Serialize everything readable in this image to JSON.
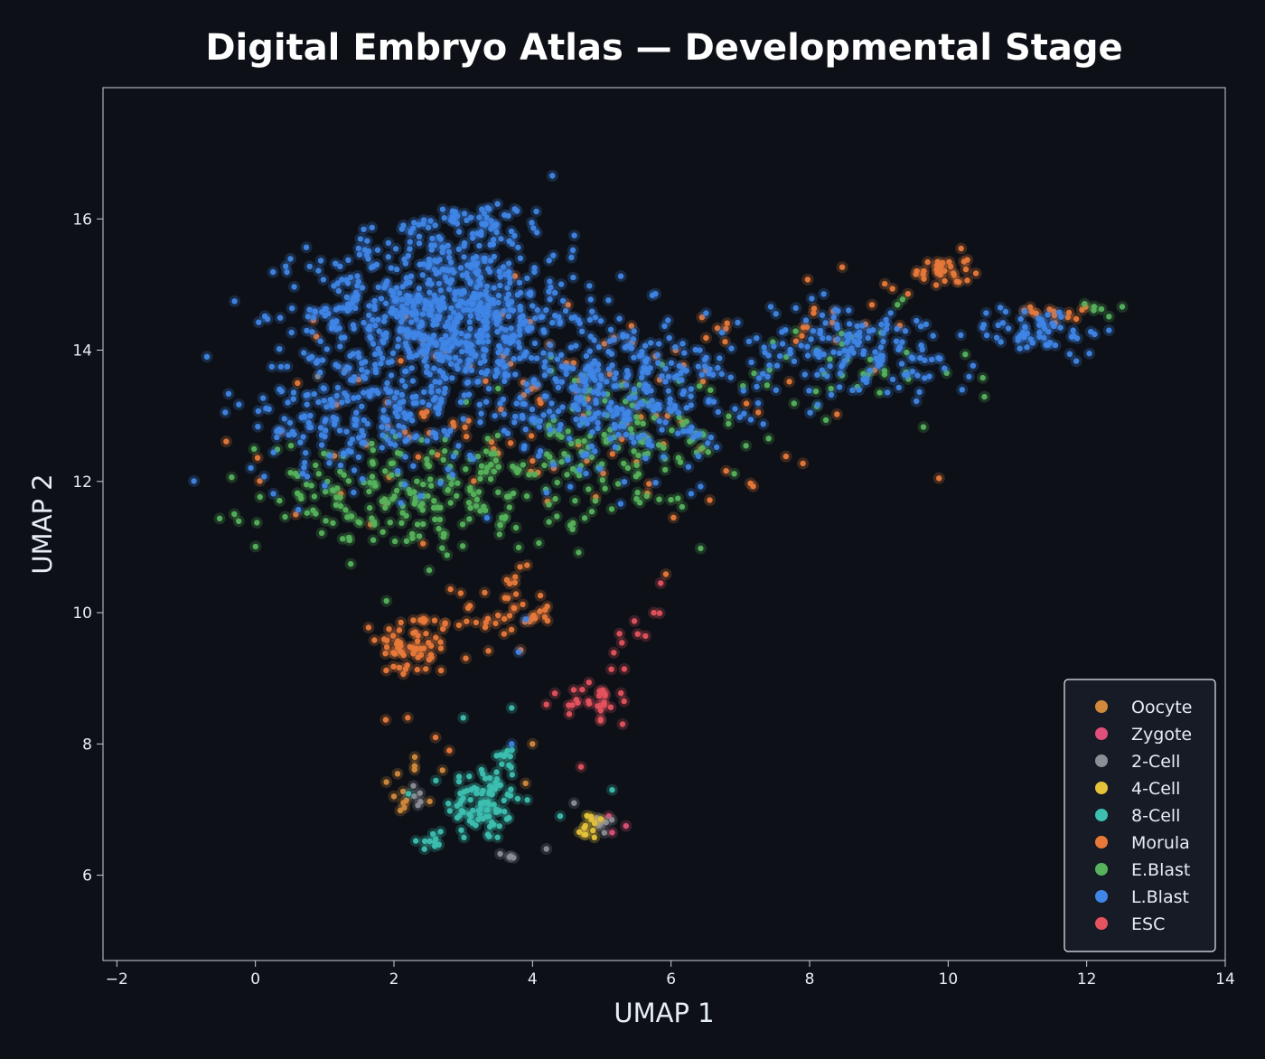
{
  "chart_data": {
    "type": "scatter",
    "title": "Digital Embryo Atlas — Developmental Stage",
    "xlabel": "UMAP 1",
    "ylabel": "UMAP 2",
    "xlim": [
      -2.2,
      14
    ],
    "ylim": [
      4.7,
      18.0
    ],
    "xticks": [
      -2,
      0,
      2,
      4,
      6,
      8,
      10,
      12,
      14
    ],
    "yticks": [
      6,
      8,
      10,
      12,
      14,
      16
    ],
    "xtick_labels": [
      "−2",
      "0",
      "2",
      "4",
      "6",
      "8",
      "10",
      "12",
      "14"
    ],
    "ytick_labels": [
      "6",
      "8",
      "10",
      "12",
      "14",
      "16"
    ],
    "grid": false,
    "legend_position": "lower-right",
    "background": "#0d1117",
    "series": [
      {
        "name": "Oocyte",
        "color": "#d18a3c",
        "clusters": [
          {
            "center": [
              2.1,
              7.3
            ],
            "spread": [
              0.25,
              0.4
            ],
            "count": 10
          }
        ],
        "points": [
          [
            2.3,
            7.8
          ],
          [
            2.0,
            7.2
          ],
          [
            4.0,
            8.0
          ],
          [
            3.9,
            7.4
          ],
          [
            2.7,
            7.6
          ]
        ]
      },
      {
        "name": "Zygote",
        "color": "#e0507a",
        "clusters": [],
        "points": [
          [
            5.1,
            6.9
          ],
          [
            5.35,
            6.75
          ],
          [
            5.15,
            6.65
          ]
        ]
      },
      {
        "name": "2-Cell",
        "color": "#8b8f96",
        "clusters": [
          {
            "center": [
              5.0,
              6.8
            ],
            "spread": [
              0.2,
              0.15
            ],
            "count": 8
          },
          {
            "center": [
              2.3,
              7.2
            ],
            "spread": [
              0.15,
              0.3
            ],
            "count": 5
          },
          {
            "center": [
              3.7,
              6.3
            ],
            "spread": [
              0.15,
              0.1
            ],
            "count": 4
          }
        ],
        "points": [
          [
            4.2,
            6.4
          ],
          [
            1.3,
            13.7
          ],
          [
            0.9,
            13.6
          ],
          [
            4.6,
            7.1
          ]
        ]
      },
      {
        "name": "4-Cell",
        "color": "#e6c23a",
        "clusters": [
          {
            "center": [
              4.85,
              6.75
            ],
            "spread": [
              0.2,
              0.18
            ],
            "count": 12
          }
        ],
        "points": []
      },
      {
        "name": "8-Cell",
        "color": "#3dbfb0",
        "clusters": [
          {
            "center": [
              3.3,
              7.1
            ],
            "spread": [
              0.45,
              0.5
            ],
            "count": 85
          },
          {
            "center": [
              2.5,
              6.5
            ],
            "spread": [
              0.2,
              0.2
            ],
            "count": 10
          },
          {
            "center": [
              3.6,
              7.8
            ],
            "spread": [
              0.2,
              0.15
            ],
            "count": 10
          }
        ],
        "points": [
          [
            5.15,
            7.3
          ],
          [
            3.7,
            8.55
          ],
          [
            3.0,
            8.4
          ],
          [
            4.4,
            6.9
          ]
        ]
      },
      {
        "name": "Morula",
        "color": "#e8793a",
        "clusters": [
          {
            "center": [
              2.3,
              9.5
            ],
            "spread": [
              0.45,
              0.45
            ],
            "count": 60
          },
          {
            "center": [
              3.6,
              10.0
            ],
            "spread": [
              0.6,
              0.5
            ],
            "count": 45
          },
          {
            "center": [
              9.9,
              15.2
            ],
            "spread": [
              0.35,
              0.25
            ],
            "count": 30
          },
          {
            "center": [
              11.7,
              14.6
            ],
            "spread": [
              0.4,
              0.2
            ],
            "count": 14
          },
          {
            "center": [
              4.0,
              13.0
            ],
            "spread": [
              3.5,
              1.4
            ],
            "count": 120
          },
          {
            "center": [
              8.3,
              14.5
            ],
            "spread": [
              1.2,
              0.7
            ],
            "count": 20
          }
        ],
        "points": [
          [
            2.6,
            8.1
          ],
          [
            2.8,
            7.9
          ],
          [
            2.2,
            8.4
          ]
        ]
      },
      {
        "name": "E.Blast",
        "color": "#56b35c",
        "clusters": [
          {
            "center": [
              2.5,
              11.8
            ],
            "spread": [
              2.0,
              0.7
            ],
            "count": 220
          },
          {
            "center": [
              5.2,
              12.6
            ],
            "spread": [
              1.5,
              0.9
            ],
            "count": 120
          },
          {
            "center": [
              8.5,
              13.6
            ],
            "spread": [
              1.5,
              0.8
            ],
            "count": 40
          },
          {
            "center": [
              12.2,
              14.6
            ],
            "spread": [
              0.3,
              0.15
            ],
            "count": 6
          }
        ],
        "points": []
      },
      {
        "name": "L.Blast",
        "color": "#3f86e6",
        "clusters": [
          {
            "center": [
              2.7,
              14.6
            ],
            "spread": [
              1.6,
              1.0
            ],
            "count": 650
          },
          {
            "center": [
              1.6,
              13.0
            ],
            "spread": [
              1.4,
              0.9
            ],
            "count": 220
          },
          {
            "center": [
              5.2,
              13.4
            ],
            "spread": [
              1.4,
              1.0
            ],
            "count": 330
          },
          {
            "center": [
              8.6,
              14.0
            ],
            "spread": [
              1.5,
              0.6
            ],
            "count": 150
          },
          {
            "center": [
              11.3,
              14.3
            ],
            "spread": [
              0.8,
              0.3
            ],
            "count": 55
          },
          {
            "center": [
              3.2,
              15.9
            ],
            "spread": [
              0.9,
              0.3
            ],
            "count": 60
          }
        ],
        "points": [
          [
            -0.7,
            13.9
          ],
          [
            3.8,
            9.4
          ],
          [
            3.9,
            9.9
          ],
          [
            3.7,
            8.0
          ]
        ]
      },
      {
        "name": "ESC",
        "color": "#e5535e",
        "clusters": [
          {
            "center": [
              4.9,
              8.7
            ],
            "spread": [
              0.3,
              0.25
            ],
            "count": 28
          },
          {
            "center": [
              5.4,
              9.6
            ],
            "spread": [
              0.2,
              0.3
            ],
            "count": 8
          }
        ],
        "points": [
          [
            5.85,
            10.45
          ],
          [
            5.75,
            10.0
          ],
          [
            4.7,
            7.65
          ],
          [
            4.2,
            8.6
          ],
          [
            5.3,
            8.3
          ]
        ]
      }
    ]
  }
}
